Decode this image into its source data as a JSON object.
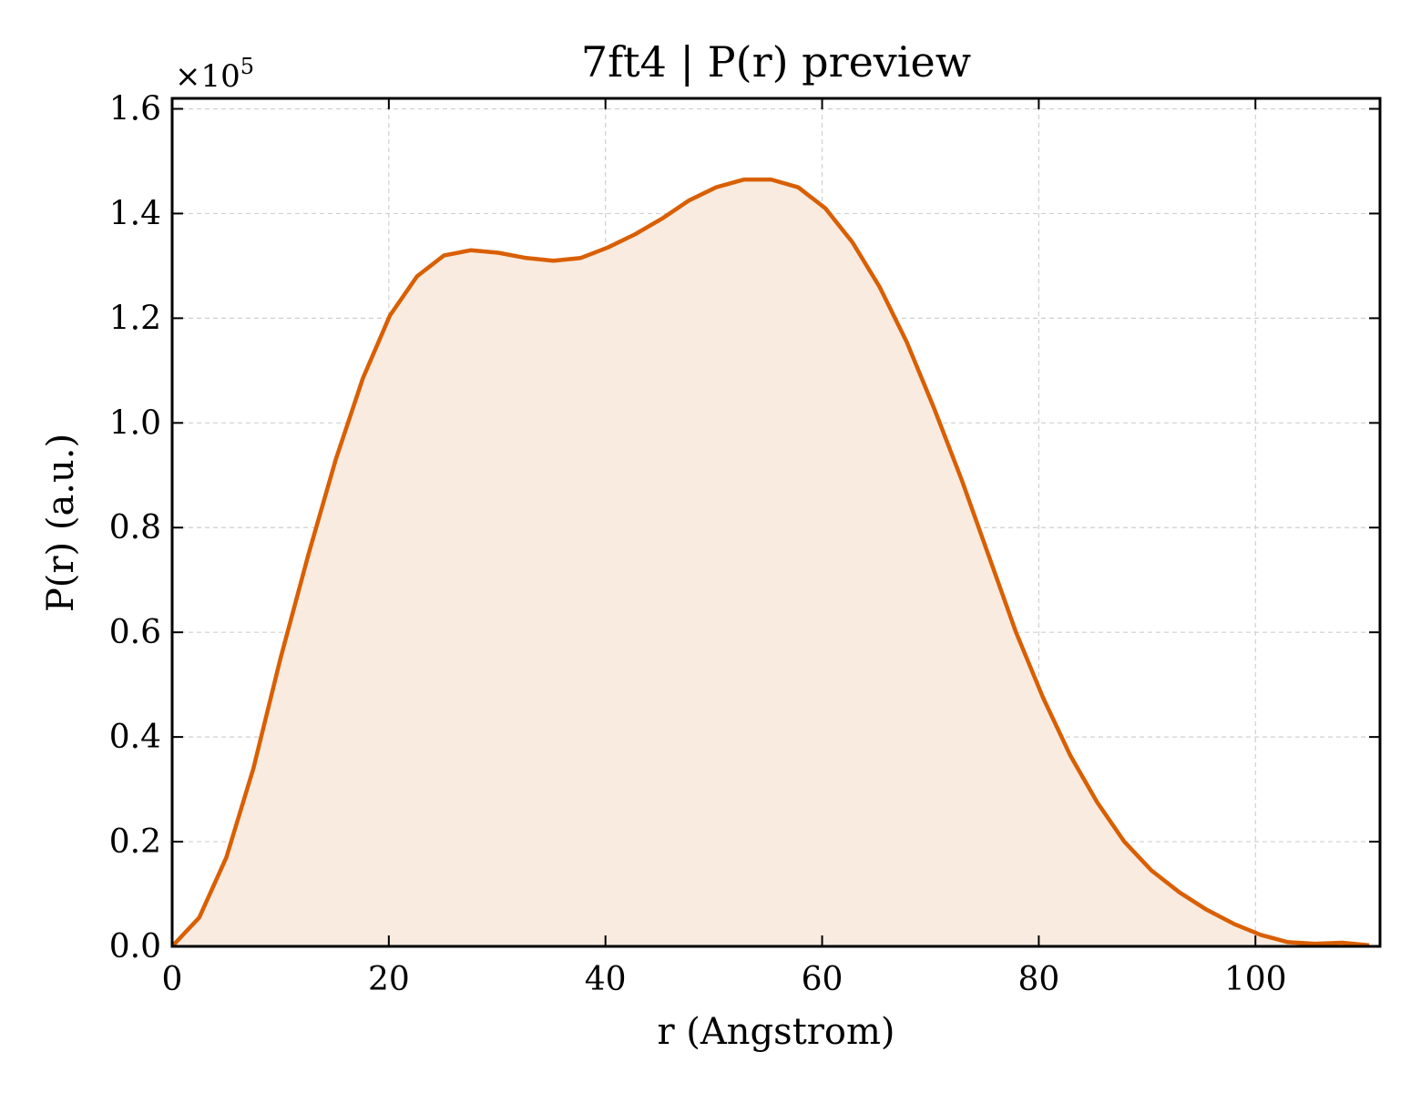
{
  "chart_data": {
    "type": "area",
    "title": "7ft4 | P(r) preview",
    "xlabel": "r (Angstrom)",
    "ylabel": "P(r) (a.u.)",
    "y_offset_text": "×10",
    "y_offset_exponent": "5",
    "y_scale": 100000,
    "xlim": [
      0,
      111.5
    ],
    "ylim": [
      0,
      1.62
    ],
    "x_ticks": [
      0,
      20,
      40,
      60,
      80,
      100
    ],
    "x_tick_labels": [
      "0",
      "20",
      "40",
      "60",
      "80",
      "100"
    ],
    "y_ticks": [
      0,
      0.2,
      0.4,
      0.6,
      0.8,
      1.0,
      1.2,
      1.4,
      1.6
    ],
    "y_tick_labels": [
      "0.0",
      "0.2",
      "0.4",
      "0.6",
      "0.8",
      "1.0",
      "1.2",
      "1.4",
      "1.6"
    ],
    "grid": true,
    "colors": {
      "line": "#d95f02",
      "fill": "#f9ebe0"
    },
    "series": [
      {
        "x": [
          0,
          2.5,
          5.0,
          7.5,
          10.0,
          12.6,
          15.1,
          17.6,
          20.1,
          22.6,
          25.1,
          27.6,
          30.1,
          32.7,
          35.2,
          37.7,
          40.2,
          42.7,
          45.2,
          47.7,
          50.2,
          52.8,
          55.3,
          57.8,
          60.3,
          62.8,
          65.3,
          67.8,
          70.3,
          72.9,
          75.4,
          77.9,
          80.4,
          82.9,
          85.4,
          87.9,
          90.4,
          93.0,
          95.5,
          98.0,
          100.5,
          103.0,
          105.5,
          108.0,
          110.5
        ],
        "y": [
          0.0,
          0.055,
          0.17,
          0.34,
          0.55,
          0.75,
          0.93,
          1.085,
          1.205,
          1.28,
          1.32,
          1.33,
          1.325,
          1.315,
          1.31,
          1.315,
          1.335,
          1.36,
          1.39,
          1.425,
          1.45,
          1.465,
          1.465,
          1.45,
          1.41,
          1.345,
          1.26,
          1.155,
          1.03,
          0.89,
          0.745,
          0.6,
          0.475,
          0.365,
          0.275,
          0.2,
          0.145,
          0.103,
          0.07,
          0.043,
          0.022,
          0.008,
          0.005,
          0.007,
          0.002
        ]
      }
    ]
  }
}
